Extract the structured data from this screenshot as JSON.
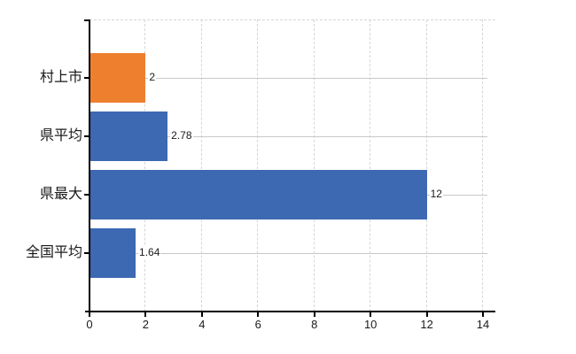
{
  "chart_data": {
    "type": "bar",
    "orientation": "horizontal",
    "title": "",
    "xlabel": "",
    "ylabel": "",
    "categories": [
      "村上市",
      "県平均",
      "県最大",
      "全国平均"
    ],
    "values": [
      2,
      2.78,
      12,
      1.64
    ],
    "value_labels": [
      "2",
      "2.78",
      "12",
      "1.64"
    ],
    "bar_colors": [
      "#ee7f2f",
      "#3d68b2",
      "#3d68b2",
      "#3d68b2"
    ],
    "highlight_color": "#ee7f2f",
    "default_color": "#3d68b2",
    "x_tick_labels": [
      "0",
      "2",
      "4",
      "6",
      "8",
      "10",
      "12",
      "14"
    ],
    "x_tick_values": [
      0,
      2,
      4,
      6,
      8,
      10,
      12,
      14
    ],
    "xlim": [
      0,
      14.44
    ],
    "grid": {
      "vertical": "dashed",
      "horizontal_row_lines": true,
      "top_border": "dashed"
    },
    "legend": "none",
    "colors": {
      "axis": "#000000",
      "grid_vertical": "#d6d6d6",
      "grid_horizontal": "#c8c8c8",
      "text": "#1a1a1a",
      "background": "#ffffff"
    }
  }
}
